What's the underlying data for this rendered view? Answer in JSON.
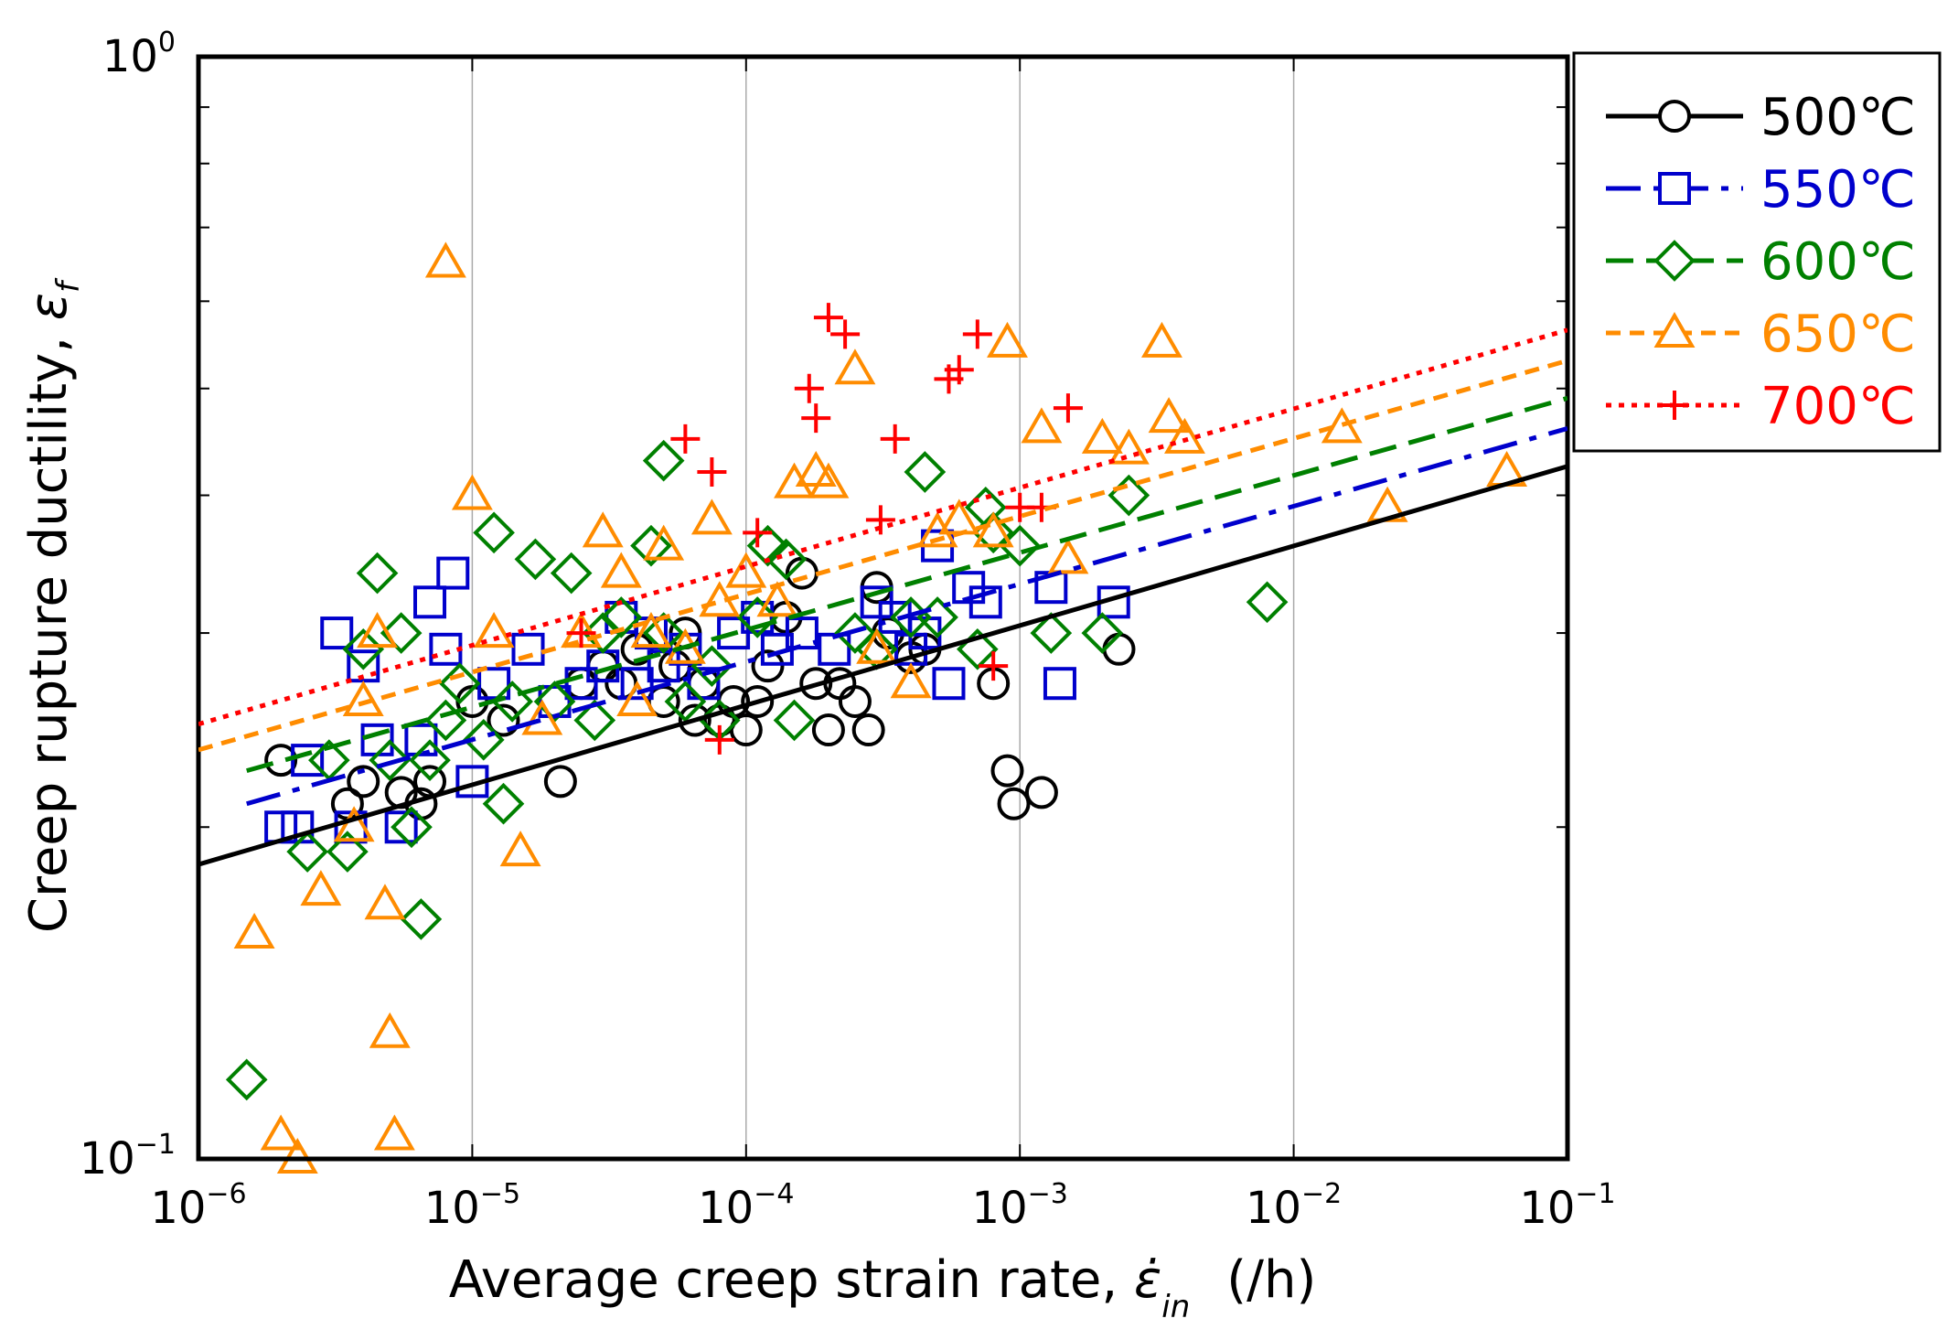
{
  "chart_data": {
    "type": "scatter",
    "title": "",
    "xlabel": "Average creep strain rate, ε̇in (/h)",
    "xlabel_parts": {
      "main": "Average creep strain rate, ",
      "symbol": "ε̇",
      "subscript": "in",
      "units": "(/h)"
    },
    "ylabel": "Creep rupture ductility, εf",
    "ylabel_parts": {
      "main": "Creep rupture ductility, ",
      "symbol": "ε",
      "subscript": "f"
    },
    "xscale": "log",
    "yscale": "log",
    "xlim": [
      1e-06,
      0.1
    ],
    "ylim": [
      0.1,
      1.0
    ],
    "x_ticks": [
      {
        "value": 1e-06,
        "base": "10",
        "exp": "−6"
      },
      {
        "value": 1e-05,
        "base": "10",
        "exp": "−5"
      },
      {
        "value": 0.0001,
        "base": "10",
        "exp": "−4"
      },
      {
        "value": 0.001,
        "base": "10",
        "exp": "−3"
      },
      {
        "value": 0.01,
        "base": "10",
        "exp": "−2"
      },
      {
        "value": 0.1,
        "base": "10",
        "exp": "−1"
      }
    ],
    "y_ticks": [
      {
        "value": 0.1,
        "base": "10",
        "exp": "−1"
      },
      {
        "value": 1.0,
        "base": "10",
        "exp": "0"
      }
    ],
    "y_minor_ticks": [
      0.2,
      0.3,
      0.4,
      0.5,
      0.6,
      0.7,
      0.8,
      0.9
    ],
    "grid": "vertical",
    "legend_position": "outside-top-right",
    "series": [
      {
        "name": "500℃",
        "color": "#000000",
        "marker": "circle",
        "dash": "solid",
        "fit": {
          "x": [
            1e-06,
            0.1
          ],
          "y": [
            0.185,
            0.425
          ]
        },
        "points": [
          [
            2e-06,
            0.23
          ],
          [
            3.5e-06,
            0.21
          ],
          [
            4e-06,
            0.22
          ],
          [
            5.5e-06,
            0.215
          ],
          [
            6.5e-06,
            0.21
          ],
          [
            7e-06,
            0.22
          ],
          [
            1e-05,
            0.26
          ],
          [
            1.3e-05,
            0.25
          ],
          [
            2.1e-05,
            0.22
          ],
          [
            2.5e-05,
            0.27
          ],
          [
            3e-05,
            0.28
          ],
          [
            3.5e-05,
            0.27
          ],
          [
            4e-05,
            0.29
          ],
          [
            5e-05,
            0.26
          ],
          [
            5.5e-05,
            0.28
          ],
          [
            6e-05,
            0.3
          ],
          [
            6.5e-05,
            0.25
          ],
          [
            7e-05,
            0.27
          ],
          [
            8e-05,
            0.25
          ],
          [
            9e-05,
            0.26
          ],
          [
            0.0001,
            0.245
          ],
          [
            0.00011,
            0.26
          ],
          [
            0.00012,
            0.28
          ],
          [
            0.00014,
            0.31
          ],
          [
            0.00016,
            0.34
          ],
          [
            0.00018,
            0.27
          ],
          [
            0.0002,
            0.245
          ],
          [
            0.00022,
            0.27
          ],
          [
            0.00025,
            0.26
          ],
          [
            0.00028,
            0.245
          ],
          [
            0.0003,
            0.33
          ],
          [
            0.00033,
            0.3
          ],
          [
            0.0004,
            0.285
          ],
          [
            0.00045,
            0.29
          ],
          [
            0.0008,
            0.27
          ],
          [
            0.0009,
            0.225
          ],
          [
            0.00095,
            0.21
          ],
          [
            0.0012,
            0.215
          ],
          [
            0.0023,
            0.29
          ]
        ]
      },
      {
        "name": "550℃",
        "color": "#0000cc",
        "marker": "square",
        "dash": "longdash",
        "fit": {
          "x": [
            1.5e-06,
            0.1
          ],
          "y": [
            0.21,
            0.46
          ]
        },
        "points": [
          [
            2e-06,
            0.2
          ],
          [
            2.3e-06,
            0.2
          ],
          [
            2.5e-06,
            0.23
          ],
          [
            3.2e-06,
            0.3
          ],
          [
            3.6e-06,
            0.2
          ],
          [
            4e-06,
            0.28
          ],
          [
            4.5e-06,
            0.24
          ],
          [
            5.5e-06,
            0.2
          ],
          [
            6.5e-06,
            0.24
          ],
          [
            7e-06,
            0.32
          ],
          [
            8e-06,
            0.29
          ],
          [
            8.5e-06,
            0.34
          ],
          [
            1e-05,
            0.22
          ],
          [
            1.2e-05,
            0.27
          ],
          [
            1.6e-05,
            0.29
          ],
          [
            2e-05,
            0.26
          ],
          [
            2.5e-05,
            0.27
          ],
          [
            3e-05,
            0.28
          ],
          [
            3.5e-05,
            0.31
          ],
          [
            4e-05,
            0.27
          ],
          [
            4.5e-05,
            0.3
          ],
          [
            5e-05,
            0.28
          ],
          [
            6e-05,
            0.29
          ],
          [
            7e-05,
            0.27
          ],
          [
            9e-05,
            0.3
          ],
          [
            0.00011,
            0.31
          ],
          [
            0.00013,
            0.29
          ],
          [
            0.00016,
            0.3
          ],
          [
            0.00021,
            0.29
          ],
          [
            0.0003,
            0.32
          ],
          [
            0.00035,
            0.31
          ],
          [
            0.0004,
            0.29
          ],
          [
            0.00045,
            0.3
          ],
          [
            0.0005,
            0.36
          ],
          [
            0.00055,
            0.27
          ],
          [
            0.00065,
            0.33
          ],
          [
            0.00075,
            0.32
          ],
          [
            0.0013,
            0.33
          ],
          [
            0.0014,
            0.27
          ],
          [
            0.0022,
            0.32
          ]
        ]
      },
      {
        "name": "600℃",
        "color": "#008000",
        "marker": "diamond",
        "dash": "dash",
        "fit": {
          "x": [
            1.5e-06,
            0.1
          ],
          "y": [
            0.225,
            0.49
          ]
        },
        "points": [
          [
            1.5e-06,
            0.118
          ],
          [
            2.5e-06,
            0.19
          ],
          [
            3e-06,
            0.23
          ],
          [
            3.5e-06,
            0.19
          ],
          [
            4e-06,
            0.29
          ],
          [
            4.5e-06,
            0.34
          ],
          [
            5e-06,
            0.23
          ],
          [
            5.5e-06,
            0.3
          ],
          [
            6e-06,
            0.2
          ],
          [
            6.5e-06,
            0.165
          ],
          [
            7e-06,
            0.23
          ],
          [
            8e-06,
            0.25
          ],
          [
            9e-06,
            0.27
          ],
          [
            1.1e-05,
            0.24
          ],
          [
            1.2e-05,
            0.37
          ],
          [
            1.3e-05,
            0.21
          ],
          [
            1.4e-05,
            0.26
          ],
          [
            1.7e-05,
            0.35
          ],
          [
            2e-05,
            0.26
          ],
          [
            2.3e-05,
            0.34
          ],
          [
            2.8e-05,
            0.25
          ],
          [
            3e-05,
            0.3
          ],
          [
            3.5e-05,
            0.31
          ],
          [
            4.5e-05,
            0.36
          ],
          [
            5e-05,
            0.3
          ],
          [
            6e-05,
            0.26
          ],
          [
            7.5e-05,
            0.28
          ],
          [
            8e-05,
            0.25
          ],
          [
            0.00011,
            0.31
          ],
          [
            0.00012,
            0.36
          ],
          [
            0.00014,
            0.35
          ],
          [
            0.00015,
            0.25
          ],
          [
            0.00025,
            0.3
          ],
          [
            0.0003,
            0.29
          ],
          [
            0.0004,
            0.31
          ],
          [
            0.00045,
            0.42
          ],
          [
            0.0005,
            0.31
          ],
          [
            0.0007,
            0.29
          ],
          [
            0.00075,
            0.39
          ],
          [
            0.0008,
            0.37
          ],
          [
            0.001,
            0.36
          ],
          [
            0.0013,
            0.3
          ],
          [
            0.002,
            0.3
          ],
          [
            0.0025,
            0.4
          ],
          [
            5e-05,
            0.43
          ],
          [
            0.008,
            0.32
          ]
        ]
      },
      {
        "name": "650℃",
        "color": "#ff8c00",
        "marker": "triangle",
        "dash": "shortdash",
        "fit": {
          "x": [
            1e-06,
            0.1
          ],
          "y": [
            0.235,
            0.53
          ]
        },
        "points": [
          [
            1.6e-06,
            0.16
          ],
          [
            2e-06,
            0.105
          ],
          [
            2.3e-06,
            0.1
          ],
          [
            2.8e-06,
            0.175
          ],
          [
            3.7e-06,
            0.2
          ],
          [
            4e-06,
            0.26
          ],
          [
            4.5e-06,
            0.3
          ],
          [
            4.8e-06,
            0.17
          ],
          [
            5e-06,
            0.13
          ],
          [
            5.2e-06,
            0.105
          ],
          [
            8e-06,
            0.65
          ],
          [
            1e-05,
            0.4
          ],
          [
            1.2e-05,
            0.3
          ],
          [
            1.5e-05,
            0.19
          ],
          [
            1.8e-05,
            0.25
          ],
          [
            2.5e-05,
            0.3
          ],
          [
            3e-05,
            0.37
          ],
          [
            3.5e-05,
            0.34
          ],
          [
            4e-05,
            0.26
          ],
          [
            4.5e-05,
            0.3
          ],
          [
            5e-05,
            0.36
          ],
          [
            6e-05,
            0.29
          ],
          [
            7.5e-05,
            0.38
          ],
          [
            8e-05,
            0.32
          ],
          [
            0.0001,
            0.34
          ],
          [
            0.00013,
            0.32
          ],
          [
            0.00015,
            0.41
          ],
          [
            0.00018,
            0.42
          ],
          [
            0.0002,
            0.41
          ],
          [
            0.00025,
            0.52
          ],
          [
            0.0003,
            0.29
          ],
          [
            0.0004,
            0.27
          ],
          [
            0.0005,
            0.37
          ],
          [
            0.0006,
            0.38
          ],
          [
            0.0008,
            0.37
          ],
          [
            0.0009,
            0.55
          ],
          [
            0.0012,
            0.46
          ],
          [
            0.0015,
            0.35
          ],
          [
            0.002,
            0.45
          ],
          [
            0.0025,
            0.44
          ],
          [
            0.0035,
            0.47
          ],
          [
            0.004,
            0.45
          ],
          [
            0.0033,
            0.55
          ],
          [
            0.015,
            0.46
          ],
          [
            0.022,
            0.39
          ],
          [
            0.06,
            0.42
          ]
        ]
      },
      {
        "name": "700℃",
        "color": "#ff0000",
        "marker": "plus",
        "dash": "dot",
        "fit": {
          "x": [
            1e-06,
            0.1
          ],
          "y": [
            0.248,
            0.565
          ]
        },
        "points": [
          [
            2.5e-05,
            0.3
          ],
          [
            6e-05,
            0.45
          ],
          [
            7.5e-05,
            0.42
          ],
          [
            8e-05,
            0.24
          ],
          [
            0.00011,
            0.37
          ],
          [
            0.00017,
            0.5
          ],
          [
            0.00018,
            0.47
          ],
          [
            0.0002,
            0.58
          ],
          [
            0.00023,
            0.56
          ],
          [
            0.00035,
            0.45
          ],
          [
            0.00031,
            0.38
          ],
          [
            0.00055,
            0.51
          ],
          [
            0.0006,
            0.52
          ],
          [
            0.0007,
            0.56
          ],
          [
            0.0008,
            0.28
          ],
          [
            0.001,
            0.39
          ],
          [
            0.0012,
            0.39
          ],
          [
            0.0015,
            0.48
          ]
        ]
      }
    ]
  }
}
